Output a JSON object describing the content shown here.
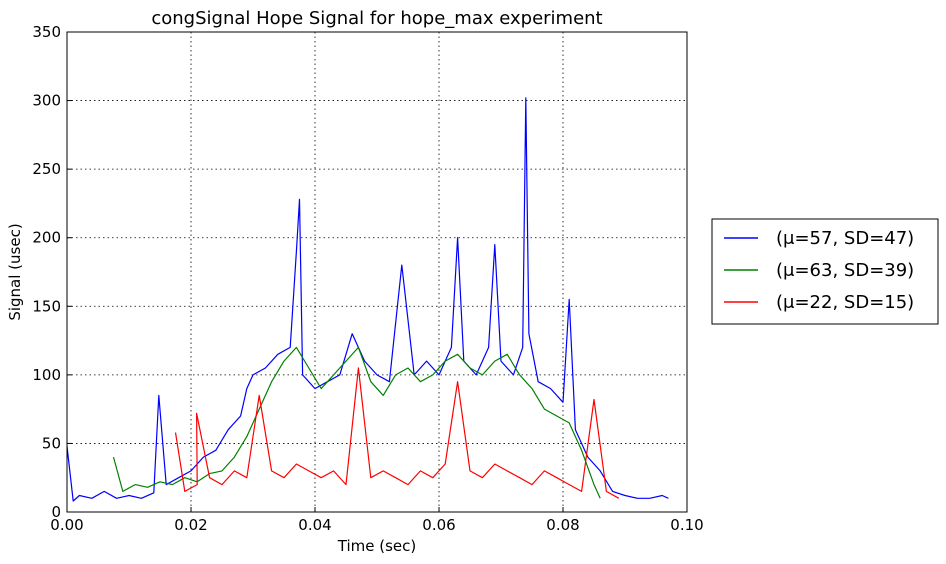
{
  "chart_data": {
    "type": "line",
    "title": "congSignal Hope Signal for hope_max experiment",
    "xlabel": "Time (sec)",
    "ylabel": "Signal (usec)",
    "xlim": [
      0.0,
      0.1
    ],
    "ylim": [
      0,
      350
    ],
    "xticks": [
      "0.00",
      "0.02",
      "0.04",
      "0.06",
      "0.08",
      "0.10"
    ],
    "yticks": [
      "0",
      "50",
      "100",
      "150",
      "200",
      "250",
      "300",
      "350"
    ],
    "grid": true,
    "legend_position": "right",
    "series": [
      {
        "name": "(μ=57, SD=47)",
        "color": "#0000ff",
        "x": [
          0.0,
          0.001,
          0.002,
          0.004,
          0.006,
          0.008,
          0.01,
          0.012,
          0.014,
          0.0148,
          0.016,
          0.018,
          0.02,
          0.022,
          0.024,
          0.026,
          0.028,
          0.029,
          0.03,
          0.032,
          0.034,
          0.036,
          0.037,
          0.0375,
          0.038,
          0.04,
          0.042,
          0.044,
          0.046,
          0.048,
          0.05,
          0.052,
          0.054,
          0.056,
          0.058,
          0.06,
          0.062,
          0.063,
          0.064,
          0.066,
          0.068,
          0.069,
          0.07,
          0.072,
          0.0735,
          0.074,
          0.0745,
          0.076,
          0.078,
          0.08,
          0.081,
          0.082,
          0.084,
          0.086,
          0.088,
          0.09,
          0.092,
          0.094,
          0.096,
          0.097
        ],
        "values": [
          48,
          8,
          12,
          10,
          15,
          10,
          12,
          10,
          14,
          85,
          20,
          25,
          30,
          40,
          45,
          60,
          70,
          90,
          100,
          105,
          115,
          120,
          190,
          228,
          100,
          90,
          95,
          100,
          130,
          110,
          100,
          95,
          180,
          100,
          110,
          100,
          120,
          200,
          110,
          100,
          120,
          195,
          110,
          100,
          120,
          302,
          130,
          95,
          90,
          80,
          155,
          60,
          40,
          30,
          15,
          12,
          10,
          10,
          12,
          10
        ]
      },
      {
        "name": "(μ=63, SD=39)",
        "color": "#008000",
        "x": [
          0.0075,
          0.009,
          0.011,
          0.013,
          0.015,
          0.017,
          0.019,
          0.021,
          0.023,
          0.025,
          0.027,
          0.029,
          0.031,
          0.033,
          0.035,
          0.037,
          0.039,
          0.041,
          0.043,
          0.045,
          0.047,
          0.049,
          0.051,
          0.053,
          0.055,
          0.057,
          0.059,
          0.061,
          0.063,
          0.065,
          0.067,
          0.069,
          0.071,
          0.073,
          0.075,
          0.077,
          0.079,
          0.081,
          0.083,
          0.085,
          0.086
        ],
        "values": [
          40,
          15,
          20,
          18,
          22,
          20,
          25,
          22,
          28,
          30,
          40,
          55,
          75,
          95,
          110,
          120,
          105,
          90,
          100,
          110,
          120,
          95,
          85,
          100,
          105,
          95,
          100,
          110,
          115,
          105,
          100,
          110,
          115,
          100,
          90,
          75,
          70,
          65,
          45,
          20,
          10
        ]
      },
      {
        "name": "(μ=22, SD=15)",
        "color": "#ff0000",
        "x": [
          0.0175,
          0.019,
          0.021,
          0.0209,
          0.023,
          0.025,
          0.027,
          0.029,
          0.031,
          0.033,
          0.035,
          0.037,
          0.039,
          0.041,
          0.043,
          0.045,
          0.047,
          0.049,
          0.051,
          0.053,
          0.055,
          0.057,
          0.059,
          0.061,
          0.063,
          0.065,
          0.067,
          0.069,
          0.071,
          0.073,
          0.075,
          0.077,
          0.079,
          0.081,
          0.083,
          0.085,
          0.087,
          0.089
        ],
        "values": [
          58,
          15,
          20,
          72,
          25,
          20,
          30,
          25,
          85,
          30,
          25,
          35,
          30,
          25,
          30,
          20,
          105,
          25,
          30,
          25,
          20,
          30,
          25,
          35,
          95,
          30,
          25,
          35,
          30,
          25,
          20,
          30,
          25,
          20,
          15,
          82,
          15,
          10
        ]
      }
    ]
  }
}
